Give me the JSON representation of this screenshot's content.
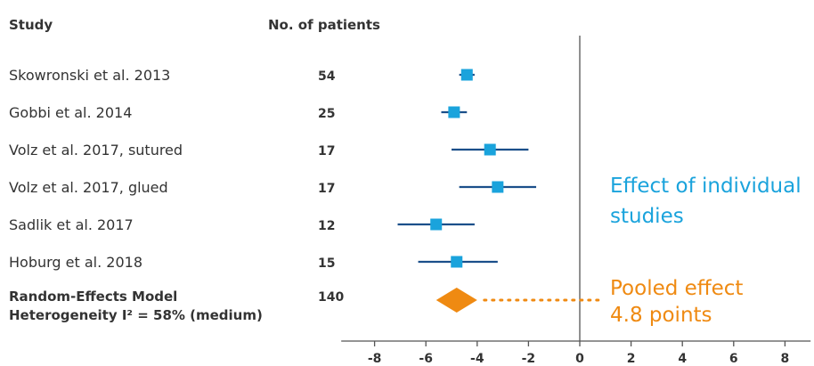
{
  "headers": {
    "study": "Study",
    "patients": "No. of patients"
  },
  "chart_data": {
    "type": "forest",
    "studies": [
      {
        "name": "Skowronski et al. 2013",
        "patients": "54",
        "estimate": -4.4,
        "ci": [
          -4.7,
          -4.1
        ]
      },
      {
        "name": "Gobbi et al. 2014",
        "patients": "25",
        "estimate": -4.9,
        "ci": [
          -5.4,
          -4.4
        ]
      },
      {
        "name": "Volz et al. 2017, sutured",
        "patients": "17",
        "estimate": -3.5,
        "ci": [
          -5.0,
          -2.0
        ]
      },
      {
        "name": "Volz et al. 2017, glued",
        "patients": "17",
        "estimate": -3.2,
        "ci": [
          -4.7,
          -1.7
        ]
      },
      {
        "name": "Sadlik et al. 2017",
        "patients": "12",
        "estimate": -5.6,
        "ci": [
          -7.1,
          -4.1
        ]
      },
      {
        "name": "Hoburg et al. 2018",
        "patients": "15",
        "estimate": -4.8,
        "ci": [
          -6.3,
          -3.2
        ]
      }
    ],
    "pooled": {
      "label_line1": "Random-Effects Model",
      "label_line2": "Heterogeneity I² = 58% (medium)",
      "patients": "140",
      "estimate": -4.8,
      "ci": [
        -5.6,
        -4.0
      ]
    },
    "x_ticks": [
      -8,
      -6,
      -4,
      -2,
      0,
      2,
      4,
      6,
      8
    ],
    "x_tick_labels": [
      "-8",
      "-6",
      "-4",
      "-2",
      "0",
      "2",
      "4",
      "6",
      "8"
    ],
    "xlim": [
      -9.3,
      9
    ],
    "reference_line": 0,
    "annotations": {
      "individual_line1": "Effect of individual",
      "individual_line2": "studies",
      "pooled_line1": "Pooled effect",
      "pooled_line2": "4.8 points"
    },
    "colors": {
      "marker": "#1aa3dc",
      "ci_line": "#1b4f8a",
      "pooled": "#ef8a12",
      "axis": "#555555",
      "text": "#333333"
    }
  }
}
